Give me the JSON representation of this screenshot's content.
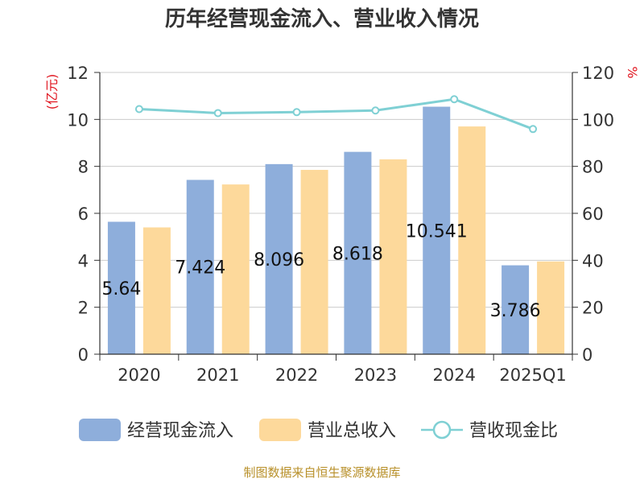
{
  "chart_data": {
    "type": "bar",
    "title": "历年经营现金流入、营业收入情况",
    "categories": [
      "2020",
      "2021",
      "2022",
      "2023",
      "2024",
      "2025Q1"
    ],
    "y_left": {
      "unit_label": "(亿元)",
      "ylim": [
        0,
        12
      ],
      "ticks": [
        "0",
        "2",
        "4",
        "6",
        "8",
        "10",
        "12"
      ]
    },
    "y_right": {
      "unit_label": "%",
      "ylim": [
        0,
        120
      ],
      "ticks": [
        "0",
        "20",
        "40",
        "60",
        "80",
        "100",
        "120"
      ]
    },
    "series": [
      {
        "name": "经营现金流入",
        "kind": "bar",
        "axis": "left",
        "color": "#8eaedb",
        "values": [
          5.64,
          7.424,
          8.096,
          8.618,
          10.541,
          3.786
        ],
        "labels": [
          "5.64",
          "7.424",
          "8.096",
          "8.618",
          "10.541",
          "3.786"
        ]
      },
      {
        "name": "营业总收入",
        "kind": "bar",
        "axis": "left",
        "color": "#fdd99b",
        "values": [
          5.4,
          7.23,
          7.85,
          8.3,
          9.7,
          3.95
        ]
      },
      {
        "name": "营收现金比",
        "kind": "line",
        "axis": "right",
        "color": "#7fd0d4",
        "values": [
          104.4,
          102.7,
          103.1,
          103.8,
          108.6,
          95.9
        ]
      }
    ],
    "grid": true,
    "legend_position": "bottom"
  },
  "source_text": "制图数据来自恒生聚源数据库"
}
